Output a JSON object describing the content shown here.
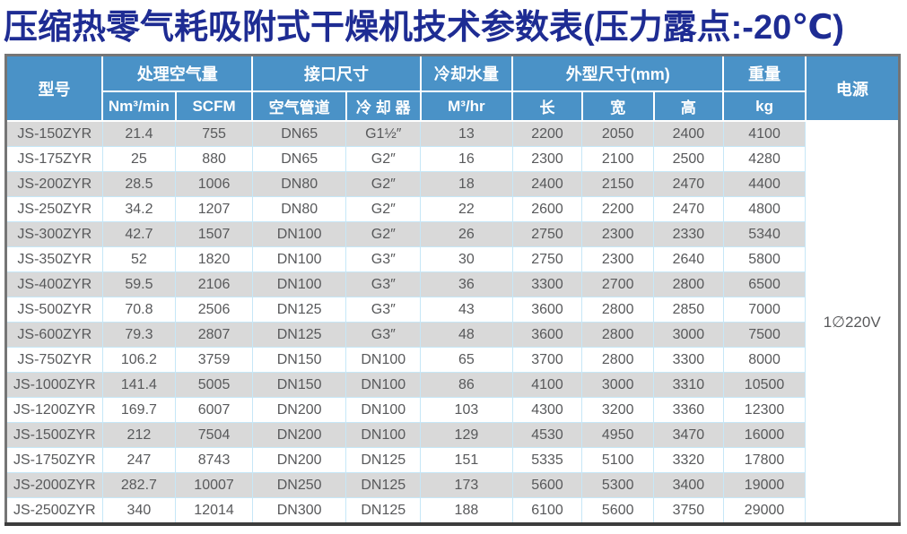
{
  "title": "压缩热零气耗吸附式干燥机技术参数表(压力露点:-20℃)",
  "colors": {
    "title_text": "#1e2c93",
    "header_bg": "#4a92c7",
    "header_text": "#ffffff",
    "alt_row_bg": "#d9d9d9",
    "grid_line": "#c6e7f7",
    "body_text": "#58595b",
    "outer_border": "#757575"
  },
  "table": {
    "header": {
      "model": "型号",
      "groups": [
        {
          "label": "处理空气量",
          "subs": [
            "Nm³/min",
            "SCFM"
          ]
        },
        {
          "label": "接口尺寸",
          "subs": [
            "空气管道",
            "冷 却 器"
          ]
        },
        {
          "label": "冷却水量",
          "subs": [
            "M³/hr"
          ]
        },
        {
          "label": "外型尺寸(mm)",
          "subs": [
            "长",
            "宽",
            "高"
          ]
        },
        {
          "label": "重量",
          "subs": [
            "kg"
          ]
        }
      ],
      "power": "电源"
    },
    "power_value": "1∅220V",
    "rows": [
      [
        "JS-150ZYR",
        "21.4",
        "755",
        "DN65",
        "G1½″",
        "13",
        "2200",
        "2050",
        "2400",
        "4100"
      ],
      [
        "JS-175ZYR",
        "25",
        "880",
        "DN65",
        "G2″",
        "16",
        "2300",
        "2100",
        "2500",
        "4280"
      ],
      [
        "JS-200ZYR",
        "28.5",
        "1006",
        "DN80",
        "G2″",
        "18",
        "2400",
        "2150",
        "2470",
        "4400"
      ],
      [
        "JS-250ZYR",
        "34.2",
        "1207",
        "DN80",
        "G2″",
        "22",
        "2600",
        "2200",
        "2470",
        "4800"
      ],
      [
        "JS-300ZYR",
        "42.7",
        "1507",
        "DN100",
        "G2″",
        "26",
        "2750",
        "2300",
        "2330",
        "5340"
      ],
      [
        "JS-350ZYR",
        "52",
        "1820",
        "DN100",
        "G3″",
        "30",
        "2750",
        "2300",
        "2640",
        "5800"
      ],
      [
        "JS-400ZYR",
        "59.5",
        "2106",
        "DN100",
        "G3″",
        "36",
        "3300",
        "2700",
        "2800",
        "6500"
      ],
      [
        "JS-500ZYR",
        "70.8",
        "2506",
        "DN125",
        "G3″",
        "43",
        "3600",
        "2800",
        "2850",
        "7000"
      ],
      [
        "JS-600ZYR",
        "79.3",
        "2807",
        "DN125",
        "G3″",
        "48",
        "3600",
        "2800",
        "3000",
        "7500"
      ],
      [
        "JS-750ZYR",
        "106.2",
        "3759",
        "DN150",
        "DN100",
        "65",
        "3700",
        "2800",
        "3300",
        "8000"
      ],
      [
        "JS-1000ZYR",
        "141.4",
        "5005",
        "DN150",
        "DN100",
        "86",
        "4100",
        "3000",
        "3310",
        "10500"
      ],
      [
        "JS-1200ZYR",
        "169.7",
        "6007",
        "DN200",
        "DN100",
        "103",
        "4300",
        "3200",
        "3360",
        "12300"
      ],
      [
        "JS-1500ZYR",
        "212",
        "7504",
        "DN200",
        "DN100",
        "129",
        "4530",
        "4950",
        "3470",
        "16000"
      ],
      [
        "JS-1750ZYR",
        "247",
        "8743",
        "DN200",
        "DN125",
        "151",
        "5335",
        "5100",
        "3320",
        "17800"
      ],
      [
        "JS-2000ZYR",
        "282.7",
        "10007",
        "DN250",
        "DN125",
        "173",
        "5600",
        "5300",
        "3400",
        "19000"
      ],
      [
        "JS-2500ZYR",
        "340",
        "12014",
        "DN300",
        "DN125",
        "188",
        "6100",
        "5600",
        "3750",
        "29000"
      ]
    ]
  }
}
